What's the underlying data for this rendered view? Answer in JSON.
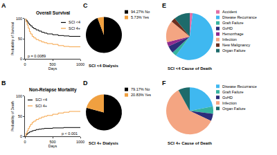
{
  "chart_data": [
    {
      "panel": "A",
      "type": "line",
      "title": "Overall Survival",
      "x_label": "Days",
      "y_label": "Probability of Survival",
      "xlim": [
        0,
        1000
      ],
      "xticks": [
        0,
        500,
        1000
      ],
      "ylim": [
        0,
        100
      ],
      "yticks": [
        0,
        50,
        100
      ],
      "legend": "top right",
      "annotations": [
        "p = 0.0089"
      ],
      "series": [
        {
          "name": "SCI <4",
          "color": "#000000",
          "x": [
            0,
            20,
            40,
            60,
            80,
            100,
            130,
            160,
            200,
            250,
            300,
            350,
            400,
            500,
            600,
            700,
            800,
            1000
          ],
          "values": [
            100,
            96,
            92,
            88,
            85,
            82,
            78,
            75,
            72,
            69,
            66,
            64,
            62,
            60,
            58,
            57,
            56,
            56
          ]
        },
        {
          "name": "SCI 4+",
          "color": "#f5a142",
          "x": [
            0,
            20,
            40,
            60,
            80,
            100,
            130,
            160,
            200,
            250,
            300,
            350,
            400,
            500,
            600,
            700,
            800,
            1000
          ],
          "values": [
            100,
            92,
            84,
            76,
            68,
            62,
            56,
            52,
            48,
            45,
            42,
            40,
            38,
            36,
            33,
            31,
            30,
            30
          ]
        }
      ]
    },
    {
      "panel": "B",
      "type": "line",
      "title": "Non-Relapse Mortality",
      "x_label": "Days",
      "y_label": "Probability of Death",
      "xlim": [
        0,
        1000
      ],
      "xticks": [
        0,
        500,
        1000
      ],
      "ylim": [
        0,
        100
      ],
      "yticks": [
        0,
        50,
        100
      ],
      "legend": "top left",
      "annotations": [
        "p < 0.001"
      ],
      "series": [
        {
          "name": "SCI <4",
          "color": "#000000",
          "x": [
            0,
            20,
            40,
            60,
            80,
            100,
            130,
            160,
            200,
            250,
            300,
            350,
            400,
            500,
            600,
            700,
            800,
            1000
          ],
          "values": [
            0,
            4,
            7,
            9,
            11,
            12,
            14,
            15,
            17,
            18,
            19,
            20,
            20,
            21,
            21,
            22,
            22,
            22
          ]
        },
        {
          "name": "SCI 4+",
          "color": "#f5a142",
          "x": [
            0,
            20,
            40,
            60,
            80,
            100,
            130,
            160,
            200,
            250,
            300,
            350,
            400,
            500,
            600,
            700,
            800,
            1000
          ],
          "values": [
            0,
            8,
            14,
            20,
            25,
            30,
            35,
            38,
            42,
            45,
            48,
            50,
            52,
            55,
            58,
            60,
            62,
            62
          ]
        }
      ]
    },
    {
      "panel": "C",
      "type": "pie",
      "title": "SCI <4 Dialysis",
      "legend": "top right",
      "categories": [
        "94.27% No",
        "5.73% Yes"
      ],
      "values": [
        94.27,
        5.73
      ],
      "colors": [
        "#000000",
        "#f0a040"
      ]
    },
    {
      "panel": "D",
      "type": "pie",
      "title": "SCI 4+ Dialysis",
      "legend": "top right",
      "categories": [
        "79.17% No",
        "20.83% Yes"
      ],
      "values": [
        79.17,
        20.83
      ],
      "colors": [
        "#000000",
        "#f0a040"
      ]
    },
    {
      "panel": "E",
      "type": "pie",
      "title": "SCI <4 Cause of Death",
      "legend": "top right",
      "categories": [
        "Accident",
        "Disease Recurrance",
        "Graft Failure",
        "GvHD",
        "Hemorrhage",
        "Infection",
        "New Malignancy",
        "Organ Failure"
      ],
      "values": [
        2,
        58,
        3,
        5,
        3,
        15,
        3,
        11
      ],
      "colors": [
        "#e06fa6",
        "#3fb8f0",
        "#36b3a0",
        "#2c2e7a",
        "#8e2a8e",
        "#f4a582",
        "#6b2f1f",
        "#1d6b6b"
      ]
    },
    {
      "panel": "F",
      "type": "pie",
      "title": "SCI 4+ Cause of Death",
      "legend": "top right",
      "categories": [
        "Disease Recurrance",
        "Graft Failure",
        "GvHD",
        "Infection",
        "Organ Failure"
      ],
      "values": [
        22,
        5,
        5,
        60,
        8
      ],
      "colors": [
        "#3fb8f0",
        "#36b3a0",
        "#2c2e7a",
        "#f4a582",
        "#1d6b6b"
      ]
    }
  ]
}
